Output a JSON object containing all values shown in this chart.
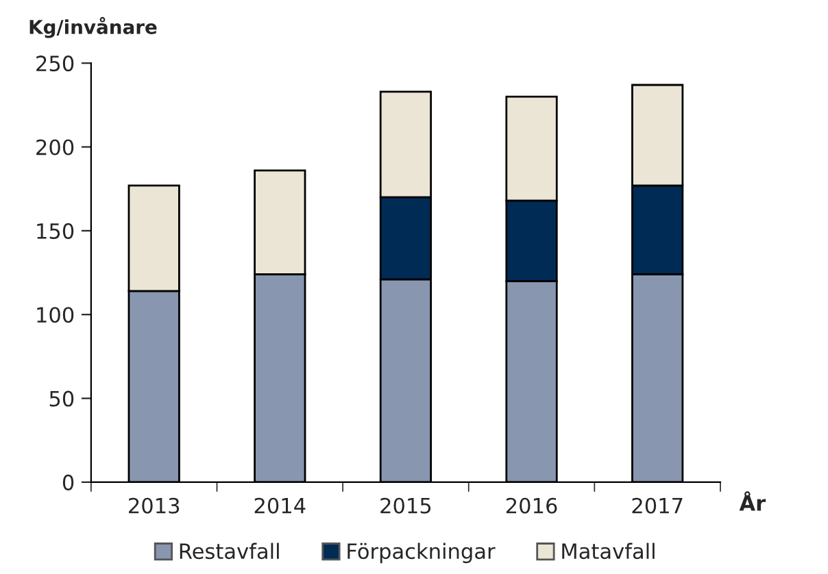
{
  "chart_data": {
    "type": "bar",
    "stacked": true,
    "ylabel": "Kg/invånare",
    "xlabel": "År",
    "categories": [
      "2013",
      "2014",
      "2015",
      "2016",
      "2017"
    ],
    "series": [
      {
        "name": "Restavfall",
        "color": "#8896b0",
        "values": [
          114,
          124,
          121,
          120,
          124
        ]
      },
      {
        "name": "Förpackningar",
        "color": "#002b55",
        "values": [
          null,
          null,
          49,
          48,
          53
        ]
      },
      {
        "name": "Matavfall",
        "color": "#ebe5d5",
        "values": [
          63,
          62,
          63,
          62,
          60
        ]
      }
    ],
    "ylim": [
      0,
      250
    ],
    "yticks": [
      0,
      50,
      100,
      150,
      200,
      250
    ],
    "grid": false,
    "legend": "bottom"
  }
}
